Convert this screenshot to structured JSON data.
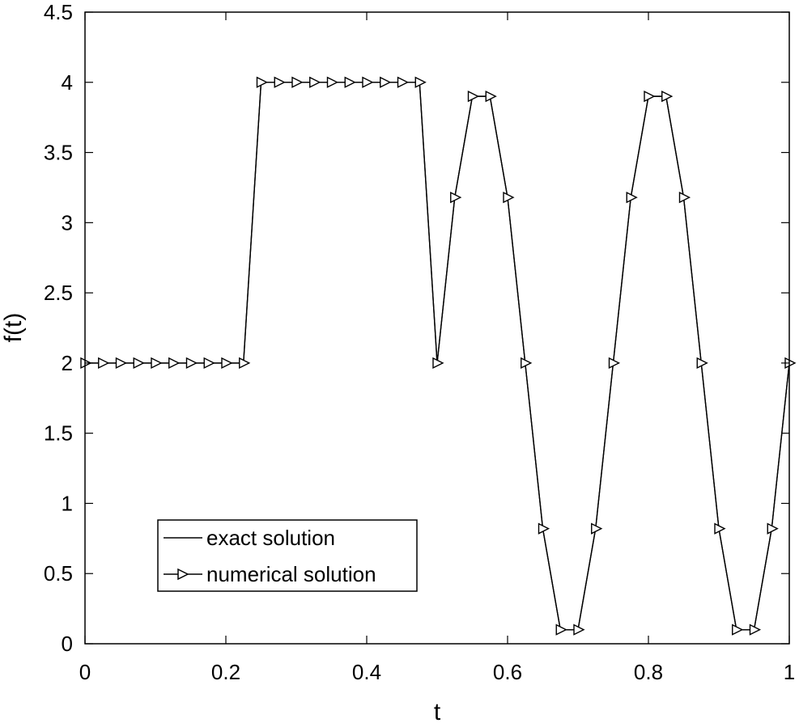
{
  "chart_data": {
    "type": "line",
    "title": "",
    "xlabel": "t",
    "ylabel": "f(t)",
    "xlim": [
      0,
      1
    ],
    "ylim": [
      0,
      4.5
    ],
    "x_ticks": [
      0,
      0.2,
      0.4,
      0.6,
      0.8,
      1
    ],
    "x_tick_labels": [
      "0",
      "0.2",
      "0.4",
      "0.6",
      "0.8",
      "1"
    ],
    "y_ticks": [
      0,
      0.5,
      1,
      1.5,
      2,
      2.5,
      3,
      3.5,
      4,
      4.5
    ],
    "y_tick_labels": [
      "0",
      "0.5",
      "1",
      "1.5",
      "2",
      "2.5",
      "3",
      "3.5",
      "4",
      "4.5"
    ],
    "grid": false,
    "legend_position": "bottom-left",
    "x": [
      0,
      0.025,
      0.05,
      0.075,
      0.1,
      0.125,
      0.15,
      0.175,
      0.2,
      0.225,
      0.25,
      0.275,
      0.3,
      0.325,
      0.35,
      0.375,
      0.4,
      0.425,
      0.45,
      0.475,
      0.5,
      0.525,
      0.55,
      0.575,
      0.6,
      0.625,
      0.65,
      0.675,
      0.7,
      0.725,
      0.75,
      0.775,
      0.8,
      0.825,
      0.85,
      0.875,
      0.9,
      0.925,
      0.95,
      0.975,
      1
    ],
    "series": [
      {
        "name": "exact solution",
        "color": "#000000",
        "marker": "none",
        "values": [
          2,
          2,
          2,
          2,
          2,
          2,
          2,
          2,
          2,
          2,
          4,
          4,
          4,
          4,
          4,
          4,
          4,
          4,
          4,
          4,
          2,
          3.18,
          3.9,
          3.9,
          3.18,
          2,
          0.82,
          0.1,
          0.1,
          0.82,
          2,
          3.18,
          3.9,
          3.9,
          3.18,
          2,
          0.82,
          0.1,
          0.1,
          0.82,
          2
        ]
      },
      {
        "name": "numerical solution",
        "color": "#000000",
        "marker": "triangle-right",
        "values": [
          2,
          2,
          2,
          2,
          2,
          2,
          2,
          2,
          2,
          2,
          4,
          4,
          4,
          4,
          4,
          4,
          4,
          4,
          4,
          4,
          2,
          3.18,
          3.9,
          3.9,
          3.18,
          2,
          0.82,
          0.1,
          0.1,
          0.82,
          2,
          3.18,
          3.9,
          3.9,
          3.18,
          2,
          0.82,
          0.1,
          0.1,
          0.82,
          2
        ]
      }
    ]
  }
}
